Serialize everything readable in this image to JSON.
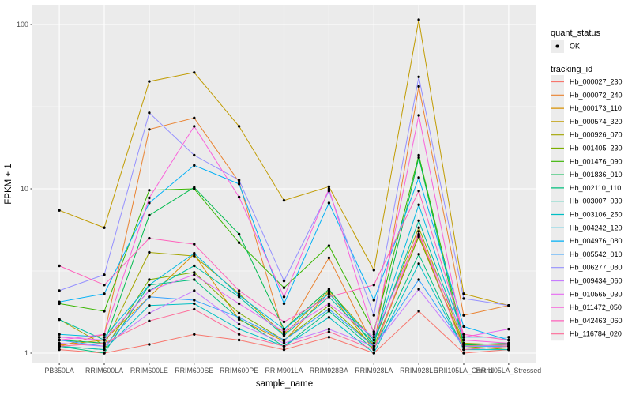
{
  "chart_data": {
    "type": "line",
    "title": "",
    "xlabel": "sample_name",
    "ylabel": "FPKM + 1",
    "y_scale": "log10",
    "y_ticks": [
      1,
      10,
      100
    ],
    "y_minor_ticks": [
      3.1623,
      31.623
    ],
    "ylim": [
      0.9,
      130
    ],
    "grid": true,
    "panel_bg": "#EBEBEB",
    "grid_color": "#FFFFFF",
    "tick_label_color": "#4D4D4D",
    "point_color": "#000000",
    "legend_key_bg": "#ECECEC",
    "legend_position": "right",
    "categories": [
      "PB350LA",
      "RRIM600LA",
      "RRIM600LE",
      "RRIM600SE",
      "RRIM600PE",
      "RRIM901LA",
      "RRIM928BA",
      "RRIM928LA",
      "RRIM928LE",
      "RRII105LA_Control",
      "RRII105LA_Stressed"
    ],
    "legend": {
      "quant_status_title": "quant_status",
      "quant_status_items": [
        {
          "label": "OK",
          "marker": "point",
          "color": "#000000"
        }
      ],
      "tracking_id_title": "tracking_id"
    },
    "series": [
      {
        "name": "Hb_000027_230",
        "color": "#F8766D",
        "values": [
          1.05,
          1.0,
          1.13,
          1.3,
          1.2,
          1.05,
          1.25,
          1.0,
          1.8,
          1.0,
          1.05
        ]
      },
      {
        "name": "Hb_000072_240",
        "color": "#EA8331",
        "values": [
          1.1,
          1.3,
          23,
          27,
          11,
          1.3,
          3.8,
          1.1,
          42,
          1.7,
          1.95
        ]
      },
      {
        "name": "Hb_000173_110",
        "color": "#D89000",
        "values": [
          1.12,
          1.2,
          2.2,
          4.0,
          1.6,
          1.18,
          2.35,
          1.05,
          5.2,
          1.12,
          1.1
        ]
      },
      {
        "name": "Hb_000574_320",
        "color": "#C09B00",
        "values": [
          7.4,
          5.8,
          45,
          51,
          24,
          8.5,
          10.3,
          3.2,
          107,
          2.3,
          1.95
        ]
      },
      {
        "name": "Hb_000926_070",
        "color": "#A3A500",
        "values": [
          1.6,
          1.12,
          4.1,
          3.9,
          2.3,
          1.3,
          2.4,
          1.2,
          5.8,
          1.15,
          1.12
        ]
      },
      {
        "name": "Hb_001405_230",
        "color": "#7CAE00",
        "values": [
          1.1,
          1.05,
          2.8,
          3.1,
          1.75,
          1.2,
          1.95,
          1.1,
          5.1,
          1.1,
          1.05
        ]
      },
      {
        "name": "Hb_001476_090",
        "color": "#39B600",
        "values": [
          2.0,
          1.8,
          9.8,
          10.0,
          4.7,
          2.5,
          4.5,
          1.35,
          16,
          1.2,
          1.2
        ]
      },
      {
        "name": "Hb_001836_010",
        "color": "#00BB4E",
        "values": [
          1.2,
          1.15,
          6.9,
          10.2,
          5.3,
          1.4,
          2.45,
          1.1,
          15.5,
          1.12,
          1.15
        ]
      },
      {
        "name": "Hb_002110_110",
        "color": "#00BF7D",
        "values": [
          1.1,
          1.0,
          2.6,
          2.8,
          1.62,
          1.1,
          1.8,
          1.05,
          4.0,
          1.05,
          1.1
        ]
      },
      {
        "name": "Hb_003007_030",
        "color": "#00C1A3",
        "values": [
          1.6,
          1.2,
          2.4,
          3.4,
          2.2,
          1.28,
          2.2,
          1.15,
          6.4,
          1.2,
          1.2
        ]
      },
      {
        "name": "Hb_003106_250",
        "color": "#00BFC4",
        "values": [
          1.1,
          1.05,
          1.95,
          2.0,
          1.4,
          1.1,
          1.65,
          1.0,
          3.5,
          1.05,
          1.05
        ]
      },
      {
        "name": "Hb_004242_120",
        "color": "#00BAE0",
        "values": [
          1.3,
          1.25,
          2.6,
          4.05,
          2.25,
          1.4,
          2.3,
          1.2,
          8.0,
          1.25,
          1.25
        ]
      },
      {
        "name": "Hb_004976_080",
        "color": "#00B0F6",
        "values": [
          2.05,
          2.3,
          8.2,
          13.9,
          10.7,
          2.0,
          8.2,
          2.1,
          11.7,
          1.45,
          1.2
        ]
      },
      {
        "name": "Hb_005542_010",
        "color": "#35A2FF",
        "values": [
          1.2,
          1.1,
          2.2,
          2.1,
          1.65,
          1.2,
          1.85,
          1.1,
          2.8,
          1.1,
          1.1
        ]
      },
      {
        "name": "Hb_006277_080",
        "color": "#9590FF",
        "values": [
          2.4,
          3.0,
          29,
          16,
          11.3,
          2.75,
          9.7,
          1.7,
          48,
          2.15,
          1.95
        ]
      },
      {
        "name": "Hb_009434_060",
        "color": "#C77CFF",
        "values": [
          1.15,
          1.1,
          1.75,
          2.4,
          1.5,
          1.15,
          1.4,
          1.1,
          2.45,
          1.1,
          1.12
        ]
      },
      {
        "name": "Hb_010565_030",
        "color": "#E76BF3",
        "values": [
          1.25,
          1.2,
          2.4,
          3.0,
          2.0,
          1.35,
          2.0,
          1.25,
          5.3,
          1.25,
          1.4
        ]
      },
      {
        "name": "Hb_011472_050",
        "color": "#FA62DB",
        "values": [
          1.2,
          1.3,
          8.8,
          24,
          8.9,
          2.2,
          10.0,
          1.3,
          28,
          1.2,
          1.15
        ]
      },
      {
        "name": "Hb_042463_060",
        "color": "#FF62BC",
        "values": [
          3.4,
          2.6,
          5.0,
          4.6,
          2.4,
          1.55,
          2.2,
          2.6,
          9.7,
          1.3,
          1.2
        ]
      },
      {
        "name": "Hb_116784_020",
        "color": "#FF6A98",
        "values": [
          1.1,
          1.15,
          1.57,
          1.85,
          1.3,
          1.1,
          1.35,
          1.05,
          5.5,
          1.05,
          1.1
        ]
      }
    ]
  }
}
